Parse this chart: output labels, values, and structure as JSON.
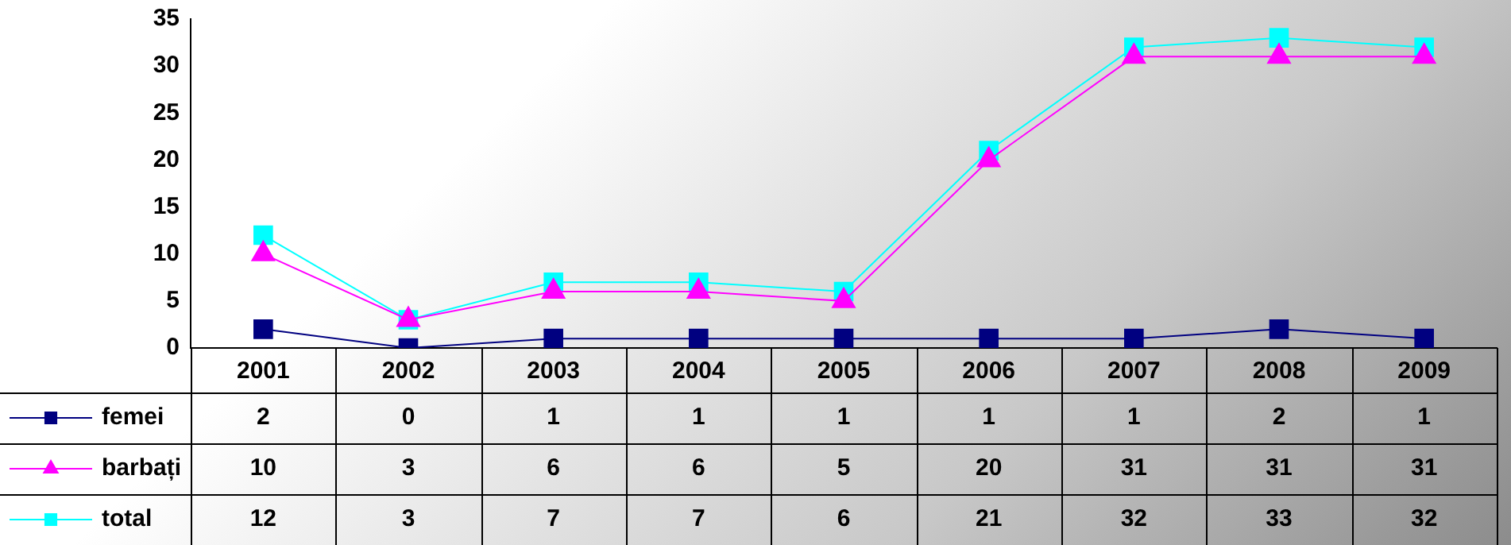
{
  "chart_data": {
    "type": "line",
    "categories": [
      "2001",
      "2002",
      "2003",
      "2004",
      "2005",
      "2006",
      "2007",
      "2008",
      "2009"
    ],
    "series": [
      {
        "name": "femei",
        "color": "#000080",
        "marker": "square",
        "values": [
          2,
          0,
          1,
          1,
          1,
          1,
          1,
          2,
          1
        ]
      },
      {
        "name": "barbați",
        "color": "#ff00ff",
        "marker": "triangle",
        "values": [
          10,
          3,
          6,
          6,
          5,
          20,
          31,
          31,
          31
        ]
      },
      {
        "name": "total",
        "color": "#00ffff",
        "marker": "square",
        "values": [
          12,
          3,
          7,
          7,
          6,
          21,
          32,
          33,
          32
        ]
      }
    ],
    "ylim": [
      0,
      35
    ],
    "yticks": [
      0,
      5,
      10,
      15,
      20,
      25,
      30,
      35
    ],
    "grid": false,
    "legend": "bottom left",
    "data_labels": true
  }
}
